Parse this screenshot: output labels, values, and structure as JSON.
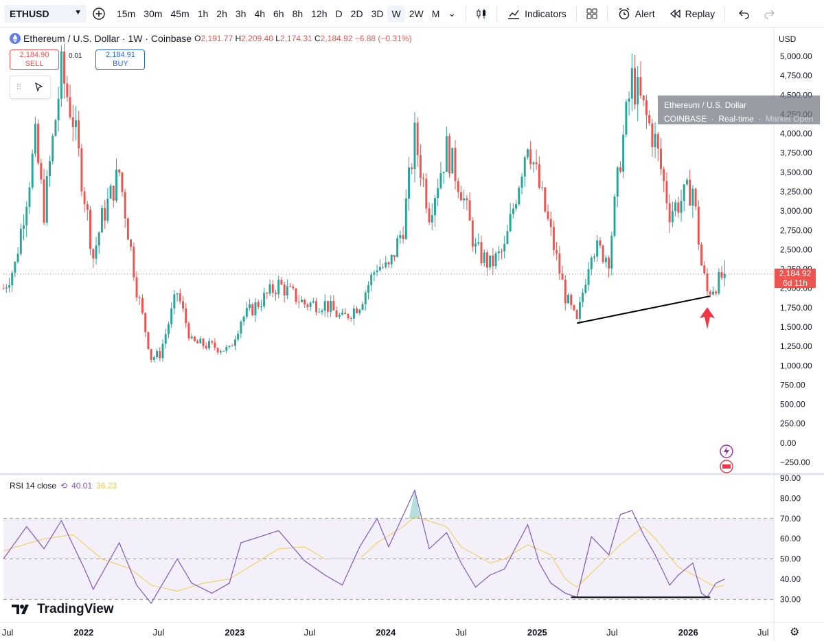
{
  "toolbar": {
    "symbol": "ETHUSD",
    "intervals": [
      "15m",
      "30m",
      "45m",
      "1h",
      "2h",
      "3h",
      "4h",
      "6h",
      "8h",
      "12h",
      "D",
      "2D",
      "3D",
      "W",
      "2W",
      "M"
    ],
    "active_interval": "W",
    "indicators_label": "Indicators",
    "alert_label": "Alert",
    "replay_label": "Replay"
  },
  "legend": {
    "title": "Ethereum / U.S. Dollar · 1W · Coinbase",
    "o_label": "O",
    "o": "2,191.77",
    "h_label": "H",
    "h": "2,209.40",
    "l_label": "L",
    "l": "2,174.31",
    "c_label": "C",
    "c": "2,184.92",
    "change": "−6.88 (−0.31%)"
  },
  "trade": {
    "sell_price": "2,184.90",
    "sell_label": "SELL",
    "spread": "0.01",
    "buy_price": "2,184.91",
    "buy_label": "BUY"
  },
  "tooltip": {
    "line1": "Ethereum / U.S. Dollar",
    "line2a": "COINBASE",
    "line2b": "Real-time",
    "line2c": "Market Open"
  },
  "currency": "USD",
  "last_price": {
    "value": "2,184.92",
    "countdown": "6d 11h"
  },
  "rsi": {
    "name": "RSI 14 close",
    "value": "40.01",
    "ma_value": "36.23"
  },
  "brand": "TradingView",
  "colors": {
    "up": "#26a69a",
    "down": "#ef5350",
    "rsi": "#7e57c2",
    "rsi_ma": "#f7c94a",
    "arrow": "#f23645"
  },
  "chart_data": [
    {
      "type": "candlestick",
      "title": "Ethereum / U.S. Dollar · 1W · Coinbase",
      "y_axis_ticks": [
        "5,000.00",
        "4,750.00",
        "4,500.00",
        "4,250.00",
        "4,000.00",
        "3,750.00",
        "3,500.00",
        "3,250.00",
        "3,000.00",
        "2,750.00",
        "2,500.00",
        "2,250.00",
        "2,000.00",
        "1,750.00",
        "1,500.00",
        "1,250.00",
        "1,000.00",
        "750.00",
        "500.00",
        "250.00",
        "0.00",
        "−250.00"
      ],
      "ylim": [
        -250,
        5000
      ],
      "x_axis_ticks": [
        "Jul",
        "2022",
        "Jul",
        "2023",
        "Jul",
        "2024",
        "Jul",
        "2025",
        "Jul",
        "2026",
        "Jul"
      ],
      "xlim": [
        "2021-06-21",
        "2026-07-27"
      ],
      "price_path": [
        [
          "2021-06-21",
          2000
        ],
        [
          "2021-07-19",
          2300
        ],
        [
          "2021-08-16",
          3200
        ],
        [
          "2021-09-06",
          3900
        ],
        [
          "2021-09-27",
          3000
        ],
        [
          "2021-11-08",
          4800
        ],
        [
          "2021-12-06",
          4200
        ],
        [
          "2022-01-03",
          3200
        ],
        [
          "2022-01-24",
          2400
        ],
        [
          "2022-02-14",
          2900
        ],
        [
          "2022-03-28",
          3500
        ],
        [
          "2022-05-09",
          2000
        ],
        [
          "2022-06-13",
          1100
        ],
        [
          "2022-07-04",
          1150
        ],
        [
          "2022-08-15",
          1950
        ],
        [
          "2022-09-19",
          1300
        ],
        [
          "2022-11-07",
          1250
        ],
        [
          "2022-12-19",
          1200
        ],
        [
          "2023-01-16",
          1600
        ],
        [
          "2023-04-17",
          2050
        ],
        [
          "2023-06-19",
          1800
        ],
        [
          "2023-08-07",
          1800
        ],
        [
          "2023-09-18",
          1600
        ],
        [
          "2023-10-30",
          1800
        ],
        [
          "2023-12-11",
          2300
        ],
        [
          "2024-01-08",
          2250
        ],
        [
          "2024-02-12",
          2800
        ],
        [
          "2024-03-11",
          3950
        ],
        [
          "2024-04-15",
          3000
        ],
        [
          "2024-05-27",
          3800
        ],
        [
          "2024-07-01",
          3300
        ],
        [
          "2024-08-05",
          2500
        ],
        [
          "2024-09-09",
          2300
        ],
        [
          "2024-10-14",
          2500
        ],
        [
          "2024-12-09",
          3950
        ],
        [
          "2025-01-06",
          3300
        ],
        [
          "2025-02-03",
          2700
        ],
        [
          "2025-03-10",
          1900
        ],
        [
          "2025-04-07",
          1550
        ],
        [
          "2025-05-12",
          2550
        ],
        [
          "2025-06-23",
          2400
        ],
        [
          "2025-07-21",
          3700
        ],
        [
          "2025-08-18",
          4700
        ],
        [
          "2025-09-15",
          4300
        ],
        [
          "2025-10-13",
          3900
        ],
        [
          "2025-11-17",
          3000
        ],
        [
          "2025-12-08",
          3100
        ],
        [
          "2026-01-12",
          3300
        ],
        [
          "2026-02-02",
          2300
        ],
        [
          "2026-02-16",
          1950
        ],
        [
          "2026-03-09",
          2050
        ],
        [
          "2026-03-30",
          2185
        ]
      ],
      "annotations": [
        {
          "type": "trendline",
          "from": [
            "2025-04-07",
            1550
          ],
          "to": [
            "2026-02-23",
            1900
          ]
        },
        {
          "type": "arrow-up",
          "at": [
            "2026-02-16",
            1650
          ]
        }
      ],
      "last_value": 2184.92
    },
    {
      "type": "line",
      "title": "RSI 14 close",
      "y_axis_ticks": [
        "90.00",
        "80.00",
        "70.00",
        "60.00",
        "50.00",
        "40.00",
        "30.00"
      ],
      "ylim": [
        26,
        90
      ],
      "bands": [
        30,
        50,
        70
      ],
      "series": [
        {
          "name": "RSI",
          "points": [
            [
              "2021-06-21",
              50
            ],
            [
              "2021-08-16",
              66
            ],
            [
              "2021-09-27",
              55
            ],
            [
              "2021-11-08",
              69
            ],
            [
              "2022-01-03",
              45
            ],
            [
              "2022-01-24",
              35
            ],
            [
              "2022-03-28",
              58
            ],
            [
              "2022-05-09",
              37
            ],
            [
              "2022-06-13",
              28
            ],
            [
              "2022-08-15",
              50
            ],
            [
              "2022-09-19",
              38
            ],
            [
              "2022-11-07",
              33
            ],
            [
              "2022-12-19",
              38
            ],
            [
              "2023-01-16",
              58
            ],
            [
              "2023-04-17",
              64
            ],
            [
              "2023-06-19",
              49
            ],
            [
              "2023-08-07",
              42
            ],
            [
              "2023-09-18",
              37
            ],
            [
              "2023-10-30",
              56
            ],
            [
              "2023-12-11",
              70
            ],
            [
              "2024-01-08",
              56
            ],
            [
              "2024-03-11",
              84
            ],
            [
              "2024-04-15",
              55
            ],
            [
              "2024-05-27",
              63
            ],
            [
              "2024-07-01",
              48
            ],
            [
              "2024-08-05",
              36
            ],
            [
              "2024-09-09",
              42
            ],
            [
              "2024-10-14",
              45
            ],
            [
              "2024-12-09",
              67
            ],
            [
              "2025-01-06",
              48
            ],
            [
              "2025-02-03",
              38
            ],
            [
              "2025-03-10",
              33
            ],
            [
              "2025-04-07",
              31
            ],
            [
              "2025-05-12",
              61
            ],
            [
              "2025-06-23",
              52
            ],
            [
              "2025-07-21",
              72
            ],
            [
              "2025-08-18",
              74
            ],
            [
              "2025-09-15",
              62
            ],
            [
              "2025-10-13",
              52
            ],
            [
              "2025-11-17",
              37
            ],
            [
              "2025-12-08",
              42
            ],
            [
              "2026-01-12",
              48
            ],
            [
              "2026-02-02",
              33
            ],
            [
              "2026-02-16",
              31
            ],
            [
              "2026-03-09",
              38
            ],
            [
              "2026-03-30",
              40
            ]
          ]
        },
        {
          "name": "RSI-based MA",
          "points": [
            [
              "2021-06-21",
              54
            ],
            [
              "2021-09-27",
              60
            ],
            [
              "2021-12-06",
              62
            ],
            [
              "2022-02-14",
              50
            ],
            [
              "2022-04-25",
              45
            ],
            [
              "2022-06-13",
              37
            ],
            [
              "2022-08-15",
              34
            ],
            [
              "2022-10-17",
              38
            ],
            [
              "2022-12-19",
              40
            ],
            [
              "2023-02-13",
              47
            ],
            [
              "2023-04-17",
              55
            ],
            [
              "2023-06-19",
              56
            ],
            [
              "2023-08-07",
              50
            ],
            [
              "2023-10-30",
              50
            ],
            [
              "2023-12-11",
              58
            ],
            [
              "2024-02-12",
              66
            ],
            [
              "2024-03-11",
              71
            ],
            [
              "2024-05-27",
              66
            ],
            [
              "2024-07-01",
              56
            ],
            [
              "2024-09-09",
              48
            ],
            [
              "2024-10-14",
              50
            ],
            [
              "2024-12-09",
              57
            ],
            [
              "2025-02-03",
              52
            ],
            [
              "2025-03-10",
              40
            ],
            [
              "2025-04-07",
              36
            ],
            [
              "2025-05-12",
              43
            ],
            [
              "2025-07-21",
              57
            ],
            [
              "2025-09-15",
              66
            ],
            [
              "2025-10-13",
              60
            ],
            [
              "2025-12-08",
              46
            ],
            [
              "2026-02-02",
              40
            ],
            [
              "2026-03-09",
              36
            ],
            [
              "2026-03-30",
              37
            ]
          ]
        }
      ],
      "annotations": [
        {
          "type": "trendline",
          "from": [
            "2025-03-24",
            31
          ],
          "to": [
            "2026-02-23",
            31
          ]
        }
      ]
    }
  ]
}
